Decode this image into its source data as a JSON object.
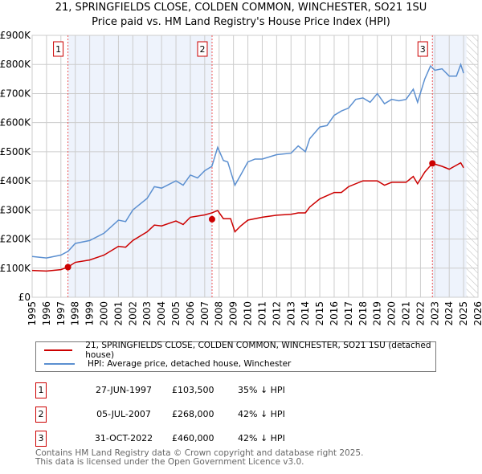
{
  "title_line1": "21, SPRINGFIELDS CLOSE, COLDEN COMMON, WINCHESTER, SO21 1SU",
  "title_line2": "Price paid vs. HM Land Registry's House Price Index (HPI)",
  "chart_data": {
    "type": "line",
    "title": "21, SPRINGFIELDS CLOSE, COLDEN COMMON, WINCHESTER, SO21 1SU — Price paid vs. HM Land Registry's House Price Index (HPI)",
    "xlim": [
      1995,
      2026
    ],
    "ylim": [
      0,
      900000
    ],
    "x_ticks": [
      "1995",
      "1996",
      "1997",
      "1998",
      "1999",
      "2000",
      "2001",
      "2002",
      "2003",
      "2004",
      "2005",
      "2006",
      "2007",
      "2008",
      "2009",
      "2010",
      "2011",
      "2012",
      "2013",
      "2014",
      "2015",
      "2016",
      "2017",
      "2018",
      "2019",
      "2020",
      "2021",
      "2022",
      "2023",
      "2024",
      "2025",
      "2026"
    ],
    "y_ticks": [
      {
        "v": 0,
        "label": "£0"
      },
      {
        "v": 100000,
        "label": "£100K"
      },
      {
        "v": 200000,
        "label": "£200K"
      },
      {
        "v": 300000,
        "label": "£300K"
      },
      {
        "v": 400000,
        "label": "£400K"
      },
      {
        "v": 500000,
        "label": "£500K"
      },
      {
        "v": 600000,
        "label": "£600K"
      },
      {
        "v": 700000,
        "label": "£700K"
      },
      {
        "v": 800000,
        "label": "£800K"
      },
      {
        "v": 900000,
        "label": "£900K"
      }
    ],
    "grid": true,
    "series": [
      {
        "name": "21, SPRINGFIELDS CLOSE, COLDEN COMMON, WINCHESTER, SO21 1SU (detached house)",
        "color": "#cc0000",
        "x": [
          1995,
          1996,
          1997,
          1997.49,
          1998,
          1999,
          2000,
          2001,
          2001.5,
          2002,
          2003,
          2003.5,
          2004,
          2005,
          2005.5,
          2006,
          2007,
          2007.5,
          2007.9,
          2008.3,
          2008.8,
          2009.1,
          2009.5,
          2010,
          2011,
          2012,
          2013,
          2013.5,
          2014,
          2014.3,
          2015,
          2016,
          2016.5,
          2017,
          2018,
          2019,
          2019.5,
          2020,
          2021,
          2021.5,
          2021.8,
          2022.3,
          2022.83,
          2023.5,
          2024,
          2024.8,
          2025
        ],
        "y": [
          92000,
          90000,
          95000,
          103500,
          120000,
          128000,
          145000,
          175000,
          172000,
          195000,
          225000,
          248000,
          245000,
          262000,
          250000,
          275000,
          283000,
          290000,
          298000,
          270000,
          270000,
          225000,
          245000,
          265000,
          275000,
          282000,
          285000,
          290000,
          290000,
          310000,
          338000,
          360000,
          360000,
          380000,
          400000,
          400000,
          385000,
          395000,
          395000,
          415000,
          390000,
          430000,
          460000,
          450000,
          440000,
          462000,
          445000
        ]
      },
      {
        "name": "HPI: Average price, detached house, Winchester",
        "color": "#5b8fd0",
        "x": [
          1995,
          1996,
          1997,
          1997.5,
          1998,
          1999,
          2000,
          2001,
          2001.5,
          2002,
          2003,
          2003.5,
          2004,
          2005,
          2005.5,
          2006,
          2006.5,
          2007,
          2007.5,
          2007.9,
          2008.3,
          2008.6,
          2009.1,
          2009.5,
          2010,
          2010.5,
          2011,
          2012,
          2013,
          2013.5,
          2014,
          2014.3,
          2015,
          2015.5,
          2016,
          2016.5,
          2017,
          2017.5,
          2018,
          2018.5,
          2019,
          2019.5,
          2020,
          2020.5,
          2021,
          2021.5,
          2021.8,
          2022.3,
          2022.7,
          2023,
          2023.5,
          2024,
          2024.5,
          2024.8,
          2025
        ],
        "y": [
          140000,
          135000,
          145000,
          158000,
          185000,
          195000,
          220000,
          265000,
          260000,
          300000,
          340000,
          380000,
          375000,
          400000,
          385000,
          420000,
          410000,
          435000,
          450000,
          515000,
          470000,
          465000,
          385000,
          420000,
          465000,
          475000,
          475000,
          490000,
          495000,
          520000,
          500000,
          545000,
          585000,
          590000,
          625000,
          640000,
          650000,
          680000,
          685000,
          670000,
          700000,
          665000,
          680000,
          675000,
          680000,
          715000,
          670000,
          750000,
          795000,
          780000,
          785000,
          760000,
          760000,
          800000,
          770000
        ]
      }
    ],
    "sales": [
      {
        "id": "1",
        "x": 1997.49,
        "y": 103500,
        "date": "27-JUN-1997",
        "price": "£103,500",
        "hpi": "35% ↓ HPI"
      },
      {
        "id": "2",
        "x": 2007.51,
        "y": 268000,
        "date": "05-JUL-2007",
        "price": "£268,000",
        "hpi": "42% ↓ HPI"
      },
      {
        "id": "3",
        "x": 2022.83,
        "y": 460000,
        "date": "31-OCT-2022",
        "price": "£460,000",
        "hpi": "42% ↓ HPI"
      }
    ],
    "shaded_ranges": [
      [
        1997.49,
        2007.51
      ],
      [
        2022.83,
        2025.2
      ]
    ],
    "hatched_from": 2025.2,
    "legend_placement": "below"
  },
  "legend": {
    "items": [
      {
        "label": "21, SPRINGFIELDS CLOSE, COLDEN COMMON, WINCHESTER, SO21 1SU (detached house)",
        "color": "#cc0000"
      },
      {
        "label": "HPI: Average price, detached house, Winchester",
        "color": "#5b8fd0"
      }
    ]
  },
  "footer": {
    "line1": "Contains HM Land Registry data © Crown copyright and database right 2025.",
    "line2": "This data is licensed under the Open Government Licence v3.0."
  }
}
